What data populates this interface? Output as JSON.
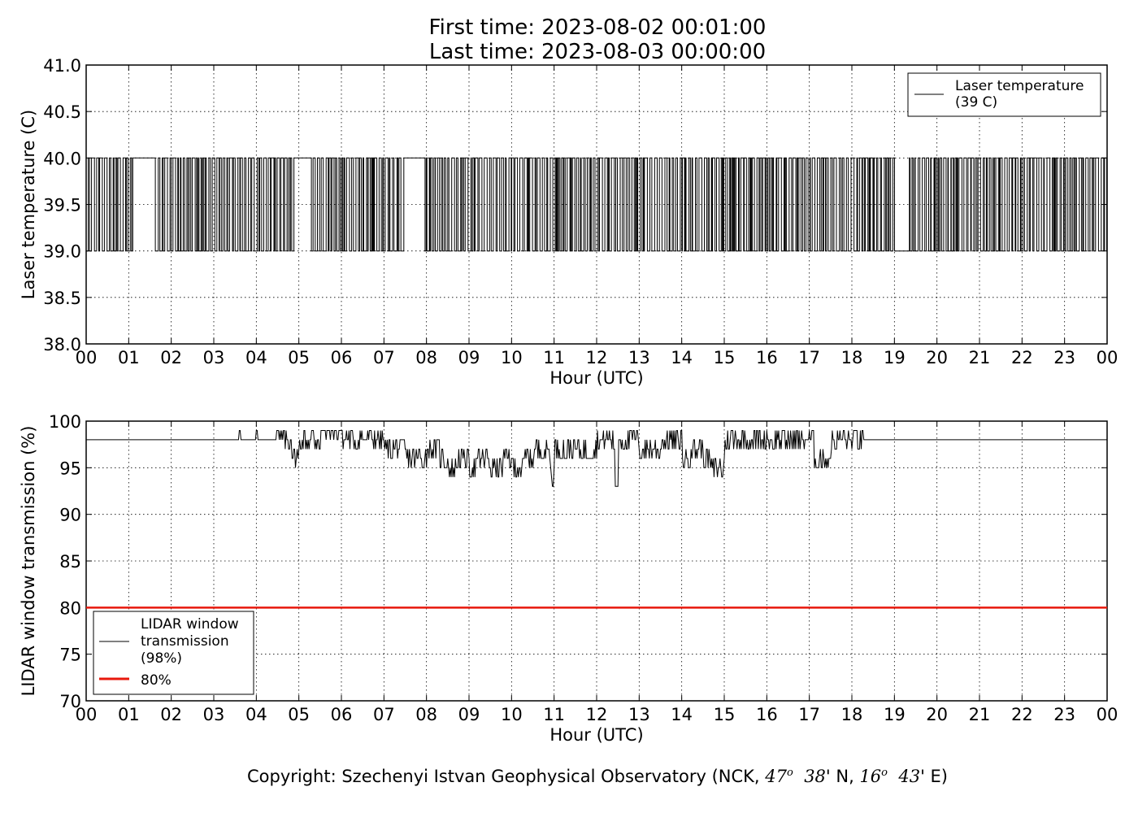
{
  "figure": {
    "title_line1": "First time: 2023-08-02 00:01:00",
    "title_line2": "Last time: 2023-08-03 00:00:00",
    "copyright_prefix": "Copyright: Szechenyi Istvan Geophysical Observatory (NCK, ",
    "lat_deg": "47",
    "lat_deg_sup": "o",
    "lat_min": "38",
    "lat_suffix": "' N, ",
    "lon_deg": "16",
    "lon_deg_sup": "o",
    "lon_min": "43",
    "lon_suffix": "' E)"
  },
  "chart_data": [
    {
      "type": "line",
      "xlabel": "Hour (UTC)",
      "ylabel": "Laser temperature (C)",
      "ylim": [
        38.0,
        41.0
      ],
      "yticks": [
        "38.0",
        "38.5",
        "39.0",
        "39.5",
        "40.0",
        "40.5",
        "41.0"
      ],
      "xlim": [
        0,
        24
      ],
      "xticks": [
        "00",
        "01",
        "02",
        "03",
        "04",
        "05",
        "06",
        "07",
        "08",
        "09",
        "10",
        "11",
        "12",
        "13",
        "14",
        "15",
        "16",
        "17",
        "18",
        "19",
        "20",
        "21",
        "22",
        "23",
        "00"
      ],
      "grid": true,
      "legend_position": "top-right",
      "series": [
        {
          "name": "Laser temperature\n(39 C)",
          "legend_line1": "Laser temperature",
          "legend_line2": "(39 C)",
          "color": "#000000",
          "value_levels": [
            39.0,
            40.0
          ],
          "description_segments": [
            {
              "x_start": 0.0,
              "x_end": 0.85,
              "behavior": "rapid switching 39.0-40.0"
            },
            {
              "x_start": 1.1,
              "x_end": 1.6,
              "behavior": "steady 40.0"
            },
            {
              "x_start": 4.9,
              "x_end": 5.25,
              "behavior": "steady 40.0"
            },
            {
              "x_start": 7.4,
              "x_end": 7.95,
              "behavior": "steady 40.0"
            },
            {
              "x_start": 19.0,
              "x_end": 19.35,
              "behavior": "steady 39.0"
            }
          ]
        }
      ]
    },
    {
      "type": "line",
      "xlabel": "Hour (UTC)",
      "ylabel": "LIDAR window transmission (%)",
      "ylim": [
        70,
        100
      ],
      "yticks": [
        "70",
        "75",
        "80",
        "85",
        "90",
        "95",
        "100"
      ],
      "xlim": [
        0,
        24
      ],
      "xticks": [
        "00",
        "01",
        "02",
        "03",
        "04",
        "05",
        "06",
        "07",
        "08",
        "09",
        "10",
        "11",
        "12",
        "13",
        "14",
        "15",
        "16",
        "17",
        "18",
        "19",
        "20",
        "21",
        "22",
        "23",
        "00"
      ],
      "grid": true,
      "legend_position": "bottom-left",
      "series": [
        {
          "name": "LIDAR window\ntransmission\n(98%)",
          "legend_line1": "LIDAR window",
          "legend_line2": "transmission",
          "legend_line3": "(98%)",
          "color": "#000000",
          "baseline": 98,
          "x": [
            0,
            3.6,
            3.65,
            4.0,
            4.05,
            4.5,
            4.8,
            4.85,
            5.0,
            5.5,
            6.0,
            6.5,
            7.0,
            7.5,
            8.0,
            8.3,
            8.5,
            8.7,
            9.0,
            9.2,
            9.5,
            9.8,
            10.0,
            10.3,
            10.5,
            10.9,
            11.0,
            11.5,
            12.0,
            12.4,
            12.45,
            12.5,
            13.0,
            13.5,
            14.0,
            14.2,
            14.5,
            14.65,
            15.0,
            15.5,
            16.0,
            16.5,
            17.0,
            17.1,
            17.5,
            18.0,
            18.25,
            18.3,
            24.0
          ],
          "y": [
            98,
            98,
            99,
            98,
            99,
            98,
            99,
            96,
            98,
            99,
            98,
            98,
            97,
            96,
            97,
            96,
            95,
            96,
            95,
            96,
            95,
            96,
            95,
            96,
            97,
            94,
            97,
            97,
            98,
            98,
            93,
            98,
            97,
            98,
            96,
            97,
            96,
            95,
            98,
            98,
            98,
            98,
            98,
            96,
            98,
            98,
            99,
            98,
            98
          ]
        },
        {
          "name": "80%",
          "legend_line1": "80%",
          "color": "#e8180c",
          "x": [
            0,
            24
          ],
          "y": [
            80,
            80
          ]
        }
      ]
    }
  ]
}
